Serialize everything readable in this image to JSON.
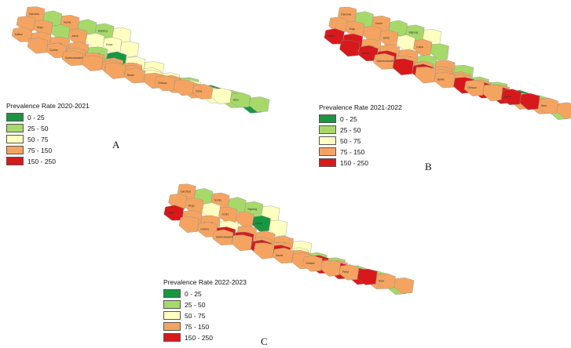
{
  "colors": {
    "0 - 25": "#1a9641",
    "25 - 50": "#a6d96a",
    "50 - 75": "#ffffc0",
    "75 - 150": "#f4a460",
    "150 - 250": "#d7191c"
  },
  "legend_classes": [
    "0 - 25",
    "25 - 50",
    "50 - 75",
    "75 - 150",
    "150 - 250"
  ],
  "panels": [
    {
      "key": "A",
      "label": "A",
      "legend_title": "Prevalence Rate 2020-2021",
      "district_classes": [
        [
          "75 - 150",
          "25 - 50",
          "75 - 150",
          "25 - 50",
          "25 - 50",
          "50 - 75"
        ],
        [
          "75 - 150",
          "75 - 150",
          "25 - 50",
          "75 - 150",
          "50 - 75",
          "50 - 75",
          "50 - 75"
        ],
        [
          "75 - 150",
          "75 - 150",
          "75 - 150",
          "75 - 150",
          "25 - 50",
          "0 - 25",
          "50 - 75",
          "50 - 75"
        ],
        [
          "75 - 150",
          "75 - 150",
          "75 - 150",
          "75 - 150",
          "75 - 150",
          "75 - 150",
          "50 - 75",
          "50 - 75",
          "25 - 50"
        ],
        [
          "75 - 150",
          "75 - 150",
          "75 - 150",
          "75 - 150",
          "50 - 75",
          "75 - 150",
          "50 - 75",
          "0 - 25",
          "25 - 50"
        ],
        [
          "75 - 150",
          "75 - 150",
          "75 - 150",
          "75 - 150",
          "75 - 150",
          "50 - 75",
          "25 - 50",
          "0 - 25"
        ],
        [
          "75 - 150",
          "75 - 150",
          "75 - 150",
          "50 - 75",
          "25 - 50",
          "25 - 50"
        ]
      ]
    },
    {
      "key": "B",
      "label": "B",
      "legend_title": "Prevalence Rate 2021-2022",
      "district_classes": [
        [
          "75 - 150",
          "25 - 50",
          "75 - 150",
          "25 - 50",
          "25 - 50",
          "50 - 75"
        ],
        [
          "75 - 150",
          "75 - 150",
          "75 - 150",
          "75 - 150",
          "50 - 75",
          "75 - 150",
          "25 - 50"
        ],
        [
          "150 - 250",
          "150 - 250",
          "75 - 150",
          "75 - 150",
          "75 - 150",
          "25 - 50",
          "75 - 150",
          "25 - 50"
        ],
        [
          "150 - 250",
          "150 - 250",
          "150 - 250",
          "75 - 150",
          "75 - 150",
          "75 - 150",
          "75 - 150",
          "25 - 50",
          "25 - 50"
        ],
        [
          "75 - 150",
          "150 - 250",
          "150 - 250",
          "75 - 150",
          "75 - 150",
          "75 - 150",
          "75 - 150",
          "0 - 25",
          "25 - 50"
        ],
        [
          "75 - 150",
          "75 - 150",
          "150 - 250",
          "150 - 250",
          "150 - 250",
          "75 - 150",
          "75 - 150",
          "25 - 50"
        ],
        [
          "75 - 150",
          "75 - 150",
          "150 - 250",
          "150 - 250",
          "75 - 150",
          "75 - 150"
        ]
      ]
    },
    {
      "key": "C",
      "label": "C",
      "legend_title": "Prevalence Rate 2022-2023",
      "district_classes": [
        [
          "75 - 150",
          "25 - 50",
          "75 - 150",
          "25 - 50",
          "25 - 50",
          "50 - 75"
        ],
        [
          "75 - 150",
          "75 - 150",
          "50 - 75",
          "75 - 150",
          "75 - 150",
          "0 - 25",
          "50 - 75"
        ],
        [
          "150 - 250",
          "75 - 150",
          "75 - 150",
          "50 - 75",
          "75 - 150",
          "75 - 150",
          "75 - 150",
          "50 - 75"
        ],
        [
          "75 - 150",
          "75 - 150",
          "150 - 250",
          "150 - 250",
          "75 - 150",
          "75 - 150",
          "50 - 75",
          "25 - 50",
          "25 - 50"
        ],
        [
          "75 - 150",
          "75 - 150",
          "150 - 250",
          "150 - 250",
          "75 - 150",
          "150 - 250",
          "75 - 150",
          "25 - 50",
          "25 - 50"
        ],
        [
          "75 - 150",
          "75 - 150",
          "75 - 150",
          "150 - 250",
          "150 - 250",
          "150 - 250",
          "75 - 150",
          "25 - 50"
        ],
        [
          "75 - 150",
          "75 - 150",
          "75 - 150",
          "150 - 250",
          "75 - 150",
          "75 - 150"
        ]
      ]
    }
  ],
  "district_names": [
    "Darchula",
    "Humla",
    "Bajhang",
    "Mugu",
    "Jumla",
    "Dolpa",
    "Kalikot",
    "Achham",
    "Mustang",
    "Manang",
    "Gorkha",
    "Rasuwa",
    "Dolakha",
    "Solukhumbu",
    "Sankhuwasabha",
    "Taplejung",
    "Kailali",
    "Kanchanpur",
    "Dang",
    "Banke",
    "Bardiya",
    "Rupandehi",
    "Nawalparasi",
    "Chitwan",
    "Parsa",
    "Bara",
    "Sarlahi",
    "Dhanusha",
    "Siraha",
    "Saptari",
    "Sunsari",
    "Morang",
    "Jhapa",
    "Ilam",
    "Panchthar"
  ]
}
